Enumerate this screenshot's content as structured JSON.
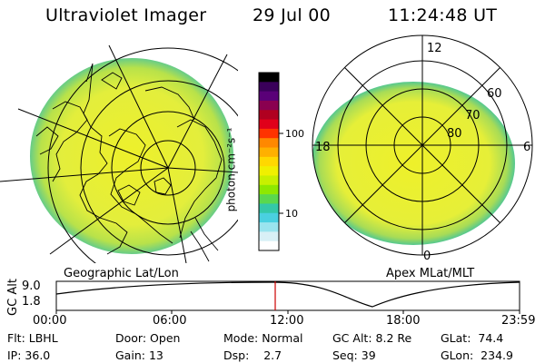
{
  "header": {
    "title": "Ultraviolet Imager",
    "date": "29 Jul 00",
    "time": "11:24:48 UT"
  },
  "colors": {
    "aurora_fill": "#e4ee3a",
    "aurora_edge": "#9bd65a",
    "lines": "#000000",
    "marker": "#cc0000"
  },
  "colorbar": {
    "unit_label": "photon cm⁻²s⁻¹",
    "ticks": [
      "100",
      "10"
    ],
    "colors": [
      "#000000",
      "#3a005a",
      "#5a0078",
      "#8a0050",
      "#b00020",
      "#e0001a",
      "#ff3300",
      "#ff8800",
      "#ffb000",
      "#ffd800",
      "#f0f000",
      "#c8f000",
      "#8ee800",
      "#5ad84e",
      "#34c8a8",
      "#4ad0e0",
      "#9ae4ee",
      "#d8f0f6",
      "#ffffff"
    ]
  },
  "left_map": {
    "caption": "Geographic Lat/Lon"
  },
  "right_map": {
    "caption": "Apex MLat/MLT",
    "mlt_labels": [
      "12",
      "18",
      "6",
      "0"
    ],
    "mlat_labels": [
      "60",
      "70",
      "80"
    ]
  },
  "orbit_panel": {
    "ylabel": "GC Alt",
    "y_ticks": [
      "9.0",
      "1.8"
    ],
    "x_ticks": [
      "00:00",
      "06:00",
      "12:00",
      "18:00",
      "23:59"
    ],
    "current_time_marker": "11:24"
  },
  "info": {
    "flt_label": "Flt:",
    "flt_value": "LBHL",
    "ip_label": "IP:",
    "ip_value": "36.0",
    "door_label": "Door:",
    "door_value": "Open",
    "gain_label": "Gain:",
    "gain_value": "13",
    "mode_label": "Mode:",
    "mode_value": "Normal",
    "dsp_label": "Dsp:",
    "dsp_value": "2.7",
    "gcalt_label": "GC Alt:",
    "gcalt_value": "8.2 Re",
    "seq_label": "Seq:",
    "seq_value": "39",
    "glat_label": "GLat:",
    "glat_value": "74.4",
    "glon_label": "GLon:",
    "glon_value": "234.9"
  }
}
